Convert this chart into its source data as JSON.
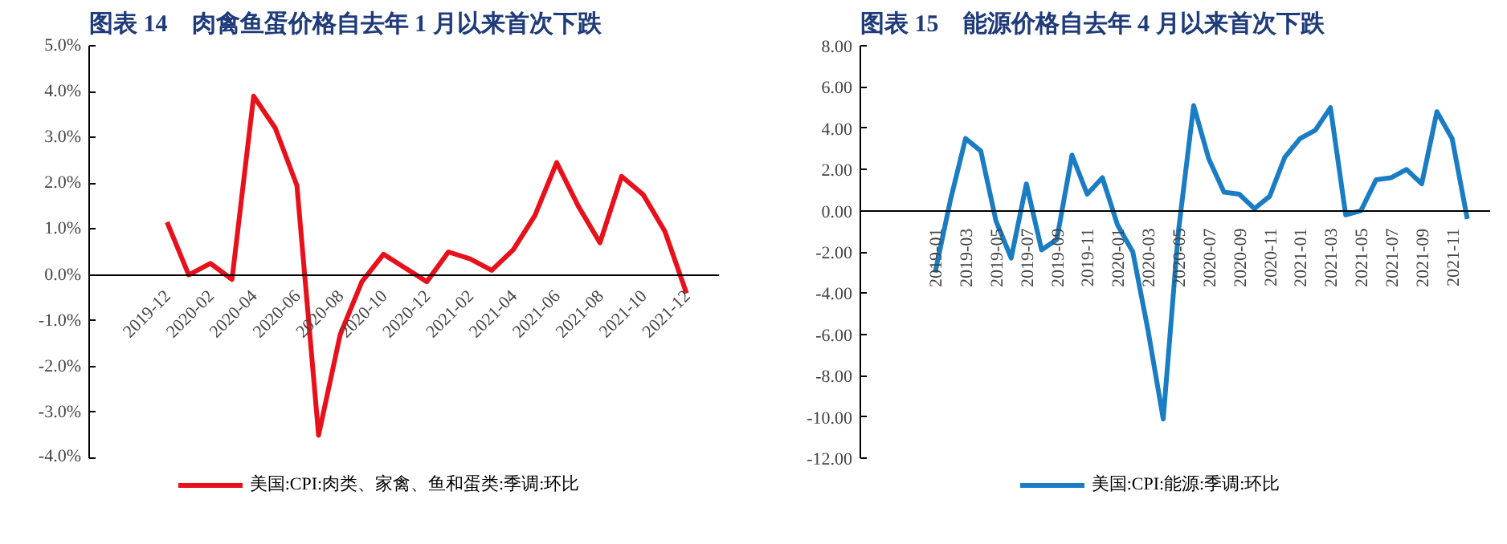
{
  "chart_data": [
    {
      "type": "line",
      "title": "图表 14　肉禽鱼蛋价格自去年 1 月以来首次下跌",
      "categories": [
        "2019-12",
        null,
        "2020-02",
        null,
        "2020-04",
        null,
        "2020-06",
        null,
        "2020-08",
        null,
        "2020-10",
        null,
        "2020-12",
        null,
        "2021-02",
        null,
        "2021-04",
        null,
        "2021-06",
        null,
        "2021-08",
        null,
        "2021-10",
        null,
        "2021-12"
      ],
      "series": [
        {
          "name": "美国:CPI:肉类、家禽、鱼和蛋类:季调:环比",
          "color": "#e8101a",
          "values": [
            1.15,
            0.0,
            0.25,
            -0.1,
            3.9,
            3.2,
            1.95,
            -3.5,
            -1.3,
            -0.15,
            0.45,
            0.15,
            -0.15,
            0.5,
            0.35,
            0.1,
            0.55,
            1.3,
            2.45,
            1.5,
            0.7,
            2.15,
            1.75,
            0.95,
            -0.4
          ]
        }
      ],
      "ylim": [
        -4,
        5
      ],
      "yticks": [
        {
          "value": -4,
          "label": "-4.0%"
        },
        {
          "value": -3,
          "label": "-3.0%"
        },
        {
          "value": -2,
          "label": "-2.0%"
        },
        {
          "value": -1,
          "label": "-1.0%"
        },
        {
          "value": 0,
          "label": "0.0%"
        },
        {
          "value": 1,
          "label": "1.0%"
        },
        {
          "value": 2,
          "label": "2.0%"
        },
        {
          "value": 3,
          "label": "3.0%"
        },
        {
          "value": 4,
          "label": "4.0%"
        },
        {
          "value": 5,
          "label": "5.0%"
        }
      ],
      "legend": "bottom",
      "grid": false
    },
    {
      "type": "line",
      "title": "图表 15　能源价格自去年 4 月以来首次下跌",
      "categories": [
        "2019-01",
        null,
        "2019-03",
        null,
        "2019-05",
        null,
        "2019-07",
        null,
        "2019-09",
        null,
        "2019-11",
        null,
        "2020-01",
        null,
        "2020-03",
        null,
        "2020-05",
        null,
        "2020-07",
        null,
        "2020-09",
        null,
        "2020-11",
        null,
        "2021-01",
        null,
        "2021-03",
        null,
        "2021-05",
        null,
        "2021-07",
        null,
        "2021-09",
        null,
        "2021-11",
        null
      ],
      "series": [
        {
          "name": "美国:CPI:能源:季调:环比",
          "color": "#1a7dc4",
          "values": [
            -3.0,
            0.5,
            3.5,
            2.9,
            -0.5,
            -2.3,
            1.3,
            -1.9,
            -1.4,
            2.7,
            0.8,
            1.6,
            -0.7,
            -2.0,
            -5.8,
            -10.1,
            -1.0,
            5.1,
            2.5,
            0.9,
            0.8,
            0.1,
            0.7,
            2.6,
            3.5,
            3.9,
            5.0,
            -0.2,
            0.0,
            1.5,
            1.6,
            2.0,
            1.3,
            4.8,
            3.5,
            -0.4
          ]
        }
      ],
      "ylim": [
        -12,
        8
      ],
      "yticks": [
        {
          "value": -12,
          "label": "-12.00"
        },
        {
          "value": -10,
          "label": "-10.00"
        },
        {
          "value": -8,
          "label": "-8.00"
        },
        {
          "value": -6,
          "label": "-6.00"
        },
        {
          "value": -4,
          "label": "-4.00"
        },
        {
          "value": -2,
          "label": "-2.00"
        },
        {
          "value": 0,
          "label": "0.00"
        },
        {
          "value": 2,
          "label": "2.00"
        },
        {
          "value": 4,
          "label": "4.00"
        },
        {
          "value": 6,
          "label": "6.00"
        },
        {
          "value": 8,
          "label": "8.00"
        }
      ],
      "legend": "bottom",
      "grid": false
    }
  ]
}
